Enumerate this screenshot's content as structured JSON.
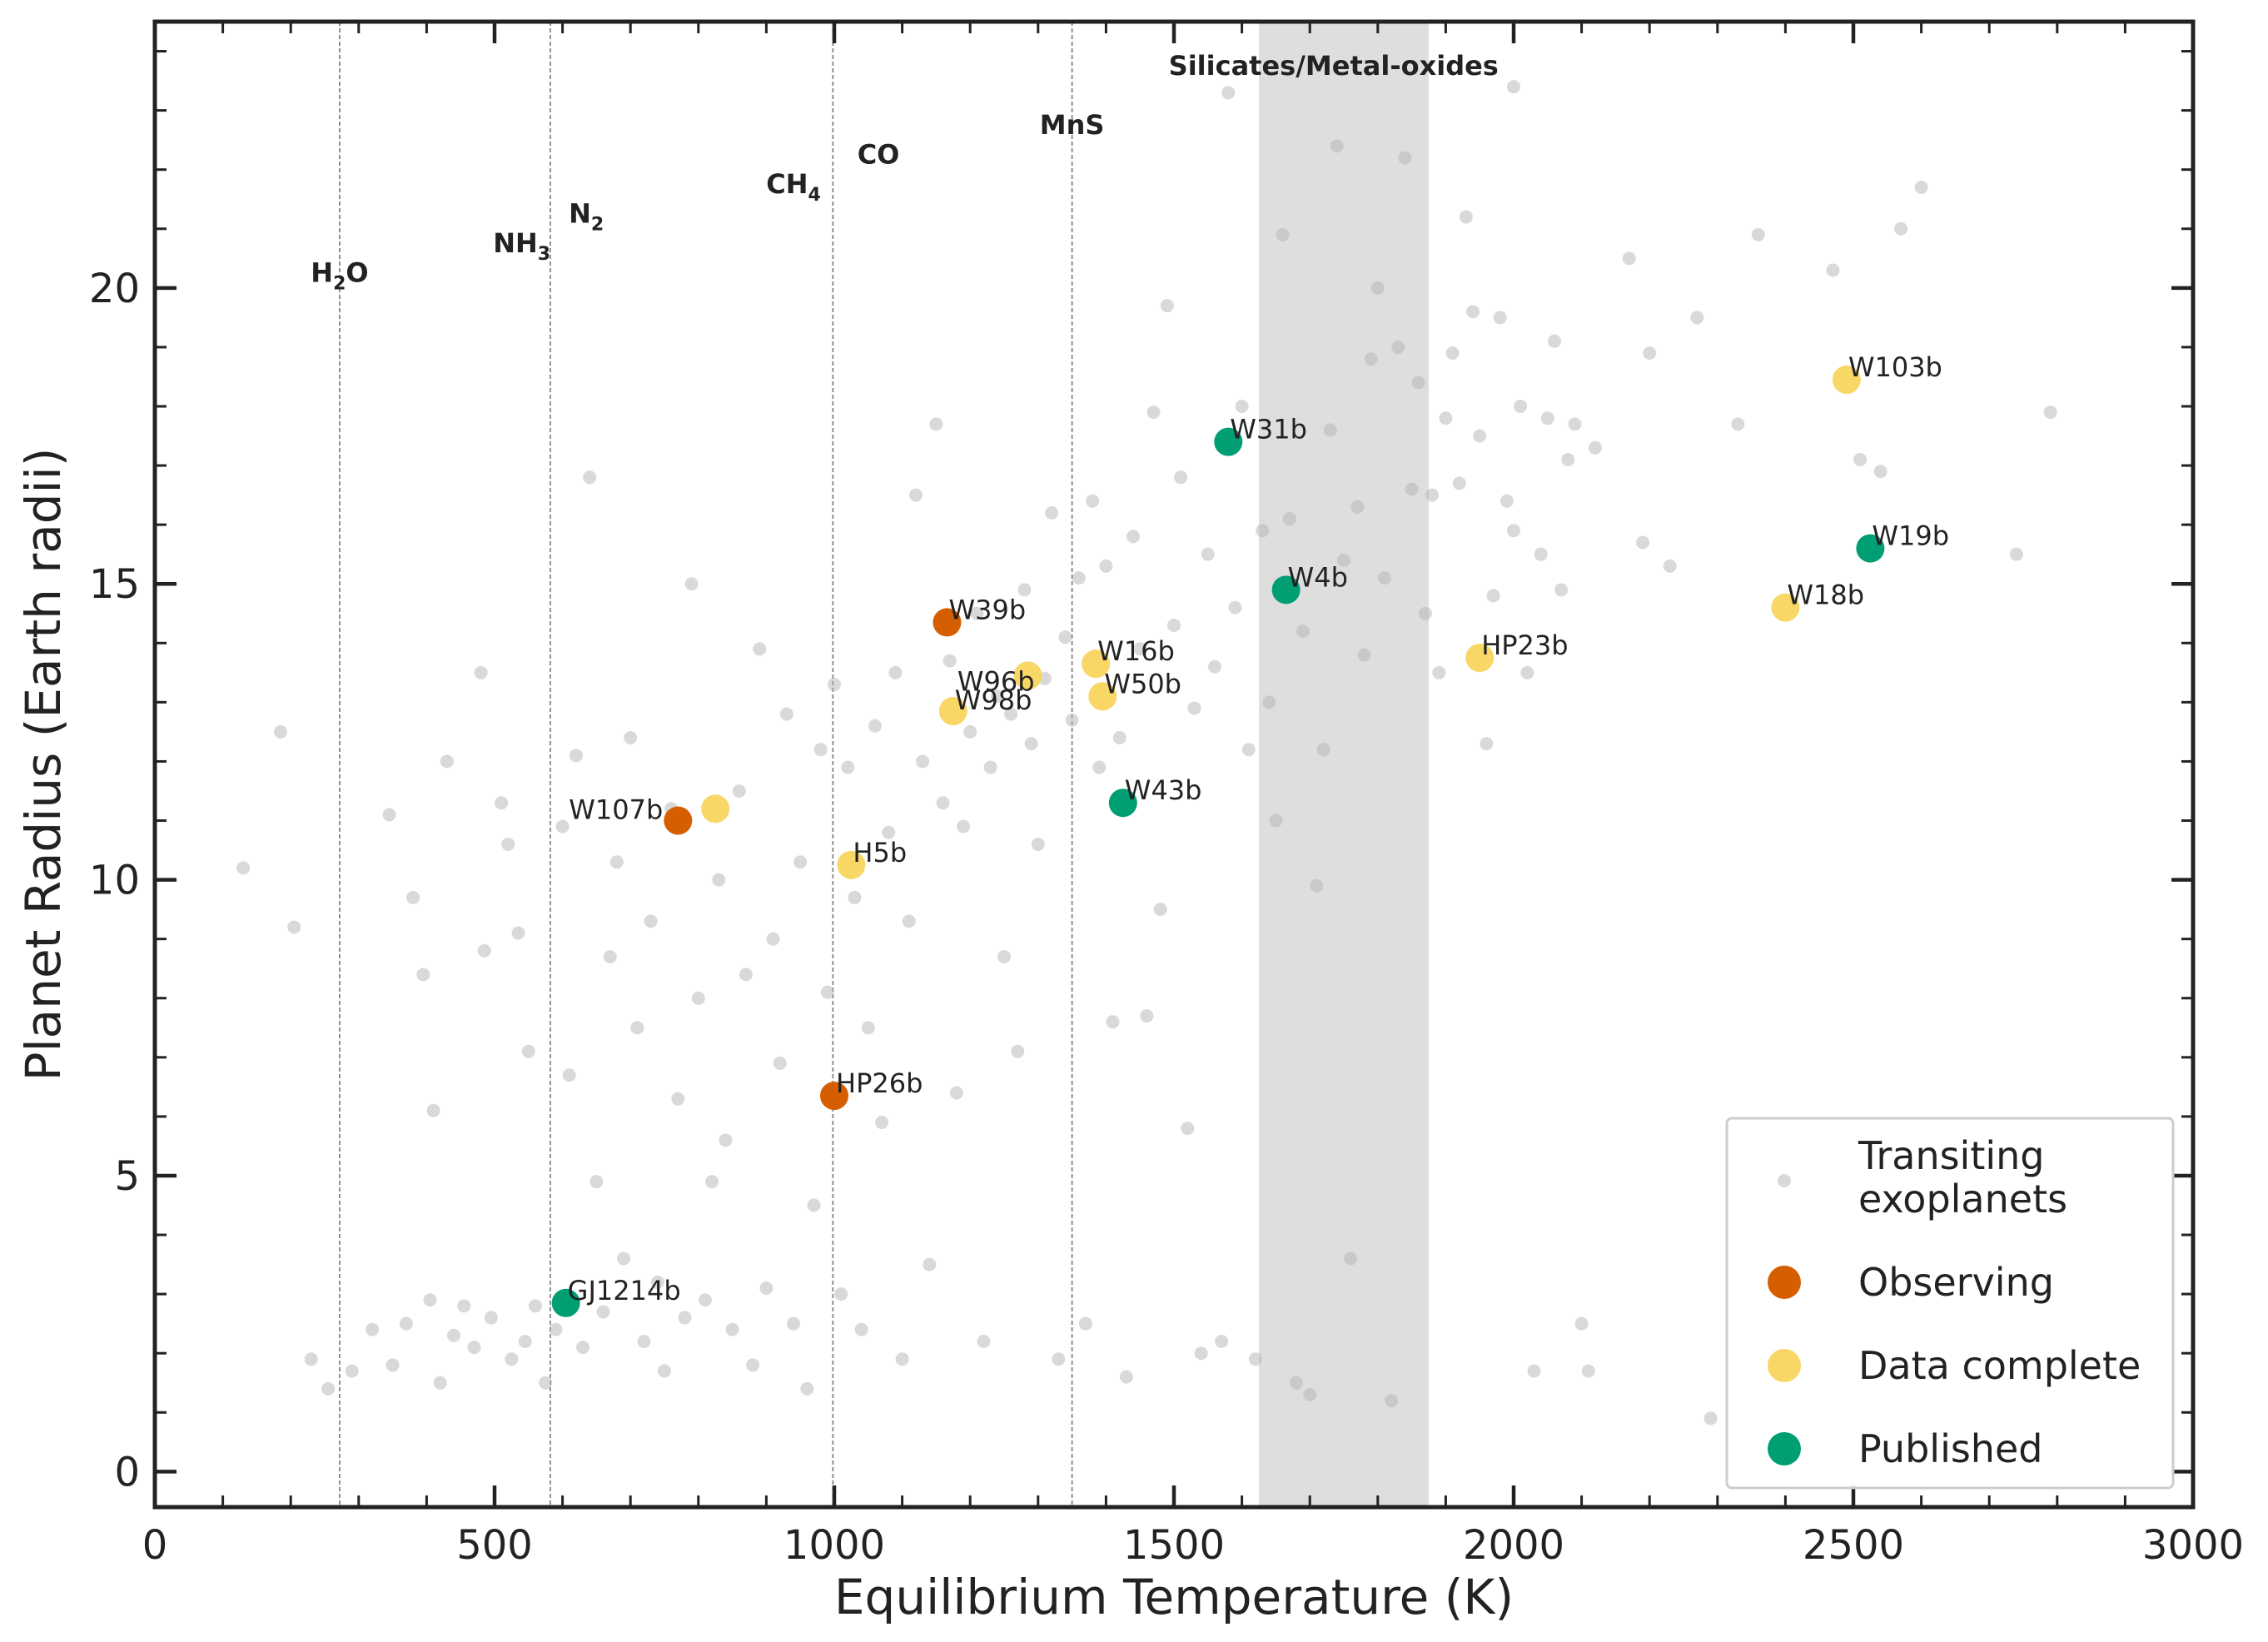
{
  "chart_data": {
    "type": "scatter",
    "xlabel": "Equilibrium Temperature (K)",
    "ylabel": "Planet Radius (Earth radii)",
    "xlim": [
      0,
      3000
    ],
    "ylim": [
      -0.6,
      24.5
    ],
    "xticks": [
      0,
      500,
      1000,
      1500,
      2000,
      2500,
      3000
    ],
    "yticks": [
      0,
      5,
      10,
      15,
      20
    ],
    "legend_position": "bottom-right",
    "condensation_lines": [
      {
        "species": "H2O",
        "x": 272
      },
      {
        "species": "NH3",
        "x": 582
      },
      {
        "species": "N2",
        "x": 582
      },
      {
        "species": "CH4",
        "x": 998
      },
      {
        "species": "CO",
        "x": 998
      },
      {
        "species": "MnS",
        "x": 1350
      }
    ],
    "species_labels": [
      {
        "main": "H",
        "sub": "2",
        "tail": "O",
        "x": 272,
        "y": 20.1
      },
      {
        "main": "NH",
        "sub": "3",
        "tail": "",
        "x": 540,
        "y": 20.6
      },
      {
        "main": "N",
        "sub": "2",
        "tail": "",
        "x": 635,
        "y": 21.1
      },
      {
        "main": "CH",
        "sub": "4",
        "tail": "",
        "x": 940,
        "y": 21.6
      },
      {
        "main": "CO",
        "sub": "",
        "tail": "",
        "x": 1065,
        "y": 22.1
      },
      {
        "main": "MnS",
        "sub": "",
        "tail": "",
        "x": 1350,
        "y": 22.6
      },
      {
        "main": "Silicates/Metal-oxides",
        "sub": "",
        "tail": "",
        "x": 1735,
        "y": 23.6
      }
    ],
    "shaded_band": {
      "x": [
        1625,
        1875
      ],
      "label": "Silicates/Metal-oxides"
    },
    "series": [
      {
        "name": "Transiting exoplanets",
        "color": "#b3b3b3",
        "points": [
          [
            130,
            10.2
          ],
          [
            185,
            12.5
          ],
          [
            205,
            9.2
          ],
          [
            230,
            1.9
          ],
          [
            255,
            1.4
          ],
          [
            290,
            1.7
          ],
          [
            320,
            2.4
          ],
          [
            345,
            11.1
          ],
          [
            350,
            1.8
          ],
          [
            370,
            2.5
          ],
          [
            380,
            9.7
          ],
          [
            395,
            8.4
          ],
          [
            405,
            2.9
          ],
          [
            410,
            6.1
          ],
          [
            420,
            1.5
          ],
          [
            430,
            12.0
          ],
          [
            440,
            2.3
          ],
          [
            455,
            2.8
          ],
          [
            470,
            2.1
          ],
          [
            480,
            13.5
          ],
          [
            485,
            8.8
          ],
          [
            495,
            2.6
          ],
          [
            510,
            11.3
          ],
          [
            520,
            10.6
          ],
          [
            525,
            1.9
          ],
          [
            535,
            9.1
          ],
          [
            545,
            2.2
          ],
          [
            550,
            7.1
          ],
          [
            560,
            2.8
          ],
          [
            575,
            1.5
          ],
          [
            590,
            2.4
          ],
          [
            600,
            10.9
          ],
          [
            610,
            6.7
          ],
          [
            620,
            12.1
          ],
          [
            630,
            2.1
          ],
          [
            640,
            16.8
          ],
          [
            650,
            4.9
          ],
          [
            660,
            2.7
          ],
          [
            670,
            8.7
          ],
          [
            680,
            10.3
          ],
          [
            690,
            3.6
          ],
          [
            700,
            12.4
          ],
          [
            710,
            7.5
          ],
          [
            720,
            2.2
          ],
          [
            730,
            9.3
          ],
          [
            740,
            3.2
          ],
          [
            750,
            1.7
          ],
          [
            760,
            11.2
          ],
          [
            770,
            6.3
          ],
          [
            780,
            2.6
          ],
          [
            790,
            15.0
          ],
          [
            800,
            8.0
          ],
          [
            810,
            2.9
          ],
          [
            820,
            4.9
          ],
          [
            830,
            10.0
          ],
          [
            840,
            5.6
          ],
          [
            850,
            2.4
          ],
          [
            860,
            11.5
          ],
          [
            870,
            8.4
          ],
          [
            880,
            1.8
          ],
          [
            890,
            13.9
          ],
          [
            900,
            3.1
          ],
          [
            910,
            9.0
          ],
          [
            920,
            6.9
          ],
          [
            930,
            12.8
          ],
          [
            940,
            2.5
          ],
          [
            950,
            10.3
          ],
          [
            960,
            1.4
          ],
          [
            970,
            4.5
          ],
          [
            980,
            12.2
          ],
          [
            990,
            8.1
          ],
          [
            1000,
            13.3
          ],
          [
            1010,
            3.0
          ],
          [
            1020,
            11.9
          ],
          [
            1030,
            9.7
          ],
          [
            1040,
            2.4
          ],
          [
            1050,
            7.5
          ],
          [
            1060,
            12.6
          ],
          [
            1070,
            5.9
          ],
          [
            1080,
            10.8
          ],
          [
            1090,
            13.5
          ],
          [
            1100,
            1.9
          ],
          [
            1110,
            9.3
          ],
          [
            1120,
            16.5
          ],
          [
            1130,
            12.0
          ],
          [
            1140,
            3.5
          ],
          [
            1150,
            17.7
          ],
          [
            1160,
            11.3
          ],
          [
            1170,
            13.7
          ],
          [
            1180,
            6.4
          ],
          [
            1190,
            10.9
          ],
          [
            1200,
            12.5
          ],
          [
            1210,
            14.5
          ],
          [
            1220,
            2.2
          ],
          [
            1230,
            11.9
          ],
          [
            1240,
            13.1
          ],
          [
            1250,
            8.7
          ],
          [
            1260,
            12.8
          ],
          [
            1270,
            7.1
          ],
          [
            1280,
            14.9
          ],
          [
            1290,
            12.3
          ],
          [
            1300,
            10.6
          ],
          [
            1310,
            13.4
          ],
          [
            1320,
            16.2
          ],
          [
            1330,
            1.9
          ],
          [
            1340,
            14.1
          ],
          [
            1350,
            12.7
          ],
          [
            1360,
            15.1
          ],
          [
            1370,
            2.5
          ],
          [
            1380,
            16.4
          ],
          [
            1390,
            11.9
          ],
          [
            1400,
            15.3
          ],
          [
            1410,
            7.6
          ],
          [
            1420,
            12.4
          ],
          [
            1430,
            1.6
          ],
          [
            1440,
            15.8
          ],
          [
            1450,
            13.9
          ],
          [
            1460,
            7.7
          ],
          [
            1470,
            17.9
          ],
          [
            1480,
            9.5
          ],
          [
            1490,
            19.7
          ],
          [
            1500,
            14.3
          ],
          [
            1510,
            16.8
          ],
          [
            1520,
            5.8
          ],
          [
            1530,
            12.9
          ],
          [
            1540,
            2.0
          ],
          [
            1550,
            15.5
          ],
          [
            1560,
            13.6
          ],
          [
            1570,
            2.2
          ],
          [
            1580,
            23.3
          ],
          [
            1590,
            14.6
          ],
          [
            1600,
            18.0
          ],
          [
            1610,
            12.2
          ],
          [
            1620,
            1.9
          ],
          [
            1630,
            15.9
          ],
          [
            1640,
            13.0
          ],
          [
            1650,
            11.0
          ],
          [
            1660,
            20.9
          ],
          [
            1670,
            16.1
          ],
          [
            1680,
            1.5
          ],
          [
            1690,
            14.2
          ],
          [
            1700,
            1.3
          ],
          [
            1710,
            9.9
          ],
          [
            1720,
            12.2
          ],
          [
            1730,
            17.6
          ],
          [
            1740,
            22.4
          ],
          [
            1750,
            15.4
          ],
          [
            1760,
            3.6
          ],
          [
            1770,
            16.3
          ],
          [
            1780,
            13.8
          ],
          [
            1790,
            18.8
          ],
          [
            1800,
            20.0
          ],
          [
            1810,
            15.1
          ],
          [
            1820,
            1.2
          ],
          [
            1830,
            19.0
          ],
          [
            1840,
            22.2
          ],
          [
            1850,
            16.6
          ],
          [
            1860,
            18.4
          ],
          [
            1870,
            14.5
          ],
          [
            1880,
            16.5
          ],
          [
            1890,
            13.5
          ],
          [
            1900,
            17.8
          ],
          [
            1910,
            18.9
          ],
          [
            1920,
            16.7
          ],
          [
            1930,
            21.2
          ],
          [
            1940,
            19.6
          ],
          [
            1950,
            17.5
          ],
          [
            1960,
            12.3
          ],
          [
            1970,
            14.8
          ],
          [
            1980,
            19.5
          ],
          [
            1990,
            16.4
          ],
          [
            2000,
            15.9
          ],
          [
            2010,
            18.0
          ],
          [
            2020,
            13.5
          ],
          [
            2030,
            1.7
          ],
          [
            2040,
            15.5
          ],
          [
            2050,
            17.8
          ],
          [
            2060,
            19.1
          ],
          [
            2070,
            14.9
          ],
          [
            2080,
            17.1
          ],
          [
            2090,
            17.7
          ],
          [
            2100,
            2.5
          ],
          [
            2110,
            1.7
          ],
          [
            2120,
            17.3
          ],
          [
            2170,
            20.5
          ],
          [
            2190,
            15.7
          ],
          [
            2200,
            18.9
          ],
          [
            2230,
            15.3
          ],
          [
            2270,
            19.5
          ],
          [
            2290,
            0.9
          ],
          [
            2330,
            17.7
          ],
          [
            2360,
            20.9
          ],
          [
            2470,
            20.3
          ],
          [
            2510,
            17.1
          ],
          [
            2540,
            16.9
          ],
          [
            2570,
            21.0
          ],
          [
            2600,
            21.7
          ],
          [
            2740,
            15.5
          ],
          [
            2790,
            17.9
          ],
          [
            2000,
            23.4
          ]
        ]
      },
      {
        "name": "Observing",
        "color": "#d55e00",
        "points": [
          {
            "label": "W39b",
            "x": 1166,
            "y": 14.35
          },
          {
            "label": "W107b",
            "x": 770,
            "y": 11.0
          },
          {
            "label": "HP26b",
            "x": 1000,
            "y": 6.35
          }
        ]
      },
      {
        "name": "Data complete",
        "color": "#f8d766",
        "points": [
          {
            "label": "W103b",
            "x": 2490,
            "y": 18.45
          },
          {
            "label": "W96b",
            "x": 1285,
            "y": 13.45
          },
          {
            "label": "W98b",
            "x": 1175,
            "y": 12.85
          },
          {
            "label": "W16b",
            "x": 1385,
            "y": 13.65
          },
          {
            "label": "W50b",
            "x": 1395,
            "y": 13.1
          },
          {
            "label": "HP23b",
            "x": 1950,
            "y": 13.75
          },
          {
            "label": "W18b",
            "x": 2400,
            "y": 14.6
          },
          {
            "label": "H5b",
            "x": 1025,
            "y": 10.25
          },
          {
            "label": "",
            "x": 825,
            "y": 11.2
          }
        ]
      },
      {
        "name": "Published",
        "color": "#009e73",
        "points": [
          {
            "label": "W31b",
            "x": 1580,
            "y": 17.4
          },
          {
            "label": "W19b",
            "x": 2525,
            "y": 15.6
          },
          {
            "label": "W4b",
            "x": 1665,
            "y": 14.9
          },
          {
            "label": "W43b",
            "x": 1425,
            "y": 11.3
          },
          {
            "label": "GJ1214b",
            "x": 605,
            "y": 2.85
          }
        ]
      }
    ],
    "legend": [
      {
        "line1": "Transiting",
        "line2": "exoplanets",
        "color": "#b3b3b3",
        "marker": "small"
      },
      {
        "line1": "Observing",
        "line2": "",
        "color": "#d55e00",
        "marker": "large"
      },
      {
        "line1": "Data complete",
        "line2": "",
        "color": "#f8d766",
        "marker": "large"
      },
      {
        "line1": "Published",
        "line2": "",
        "color": "#009e73",
        "marker": "large"
      }
    ]
  }
}
